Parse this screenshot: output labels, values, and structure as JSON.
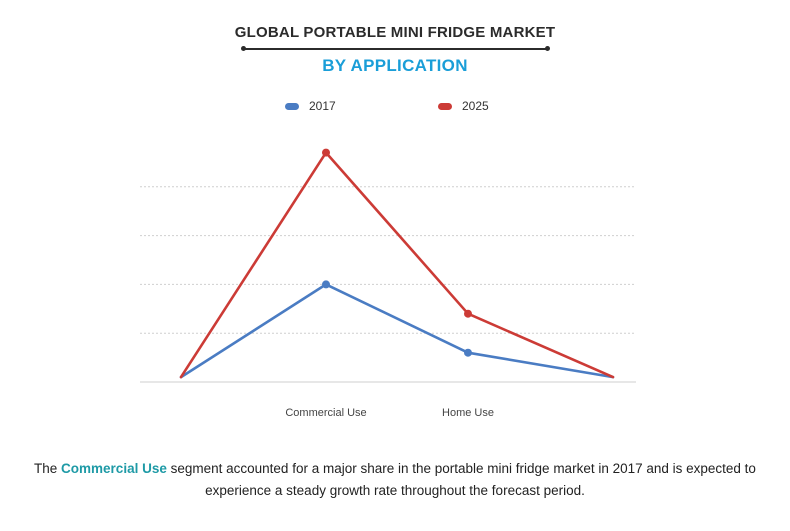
{
  "title": "GLOBAL PORTABLE MINI FRIDGE MARKET",
  "subtitle": "BY APPLICATION",
  "colors": {
    "accent": "#1a9ed8",
    "highlight": "#1e9aa6",
    "series_2017": "#4a7cc3",
    "series_2025": "#cc3b36",
    "grid": "#cfcfcf"
  },
  "caption": {
    "before": "The ",
    "highlight": "Commercial Use",
    "after": " segment accounted for a major share in the portable mini fridge market in 2017 and is expected to experience a steady growth rate throughout the forecast period."
  },
  "chart_data": {
    "type": "line",
    "categories": [
      "",
      "Commercial Use",
      "Home Use",
      ""
    ],
    "series": [
      {
        "name": "2017",
        "values": [
          0.2,
          4.0,
          1.2,
          0.2
        ],
        "markers": [
          false,
          true,
          true,
          false
        ]
      },
      {
        "name": "2025",
        "values": [
          0.2,
          9.4,
          2.8,
          0.2
        ],
        "markers": [
          false,
          true,
          true,
          false
        ]
      }
    ],
    "ylim": [
      0,
      10
    ],
    "grid": true,
    "legend_position": "top-center",
    "xlabel": "",
    "ylabel": ""
  }
}
